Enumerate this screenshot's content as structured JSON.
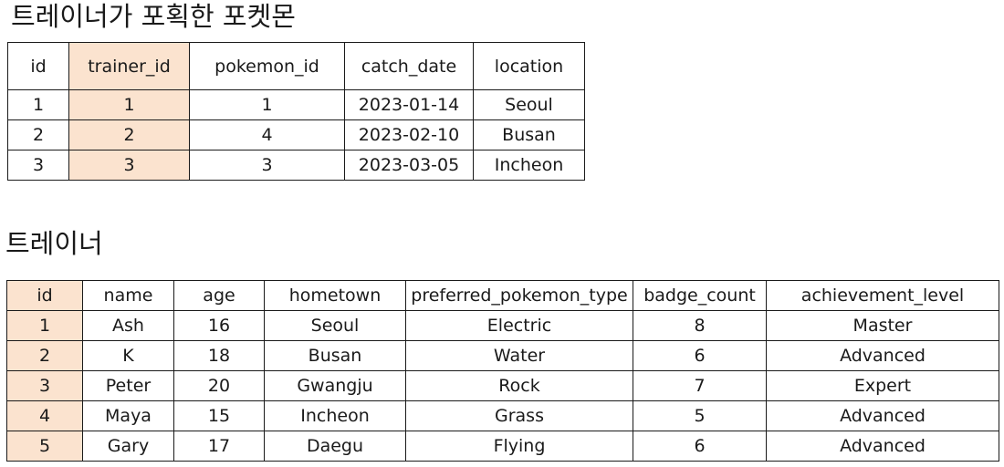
{
  "catches": {
    "title": "트레이너가 포획한 포켓몬",
    "columns": [
      "id",
      "trainer_id",
      "pokemon_id",
      "catch_date",
      "location"
    ],
    "rows": [
      [
        "1",
        "1",
        "1",
        "2023-01-14",
        "Seoul"
      ],
      [
        "2",
        "2",
        "4",
        "2023-02-10",
        "Busan"
      ],
      [
        "3",
        "3",
        "3",
        "2023-03-05",
        "Incheon"
      ]
    ]
  },
  "trainers": {
    "title": "트레이너",
    "columns": [
      "id",
      "name",
      "age",
      "hometown",
      "preferred_pokemon_type",
      "badge_count",
      "achievement_level"
    ],
    "rows": [
      [
        "1",
        "Ash",
        "16",
        "Seoul",
        "Electric",
        "8",
        "Master"
      ],
      [
        "2",
        "K",
        "18",
        "Busan",
        "Water",
        "6",
        "Advanced"
      ],
      [
        "3",
        "Peter",
        "20",
        "Gwangju",
        "Rock",
        "7",
        "Expert"
      ],
      [
        "4",
        "Maya",
        "15",
        "Incheon",
        "Grass",
        "5",
        "Advanced"
      ],
      [
        "5",
        "Gary",
        "17",
        "Daegu",
        "Flying",
        "6",
        "Advanced"
      ]
    ]
  },
  "colors": {
    "highlight": "#fbe3cf",
    "border": "#1a1a1a"
  }
}
